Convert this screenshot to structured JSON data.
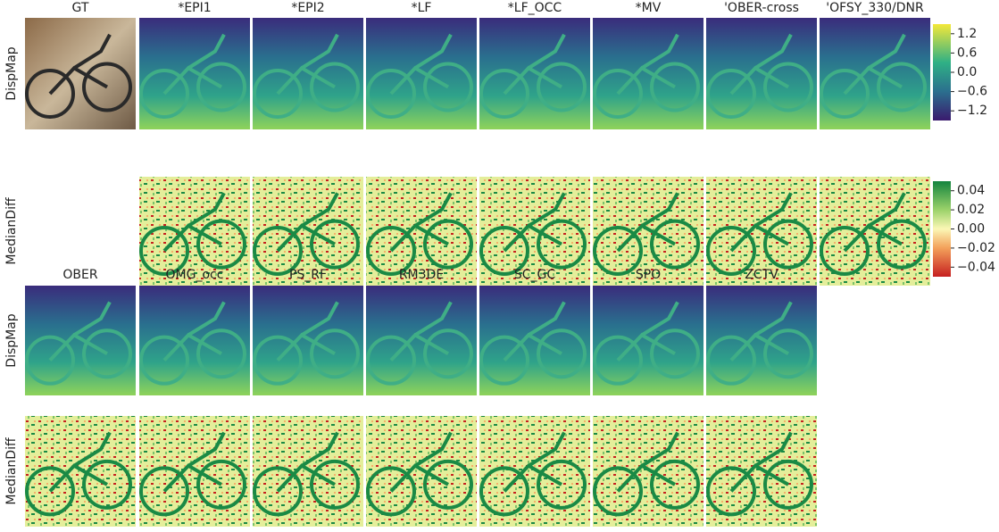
{
  "row_titles": [
    [
      "GT",
      "*EPI1",
      "*EPI2",
      "*LF",
      "*LF_OCC",
      "*MV",
      "'OBER-cross",
      "'OFSY_330/DNR"
    ],
    [
      "OBER",
      "OMG_occ",
      "PS_RF",
      "RM3DE",
      "SC_GC",
      "SPO",
      "ZCTV"
    ]
  ],
  "row_labels": [
    "DispMap",
    "MedianDiff",
    "DispMap",
    "MedianDiff"
  ],
  "colorbars": [
    {
      "ticks": [
        "1.2",
        "0.6",
        "0.0",
        "−0.6",
        "−1.2"
      ]
    },
    {
      "ticks": [
        "0.04",
        "0.02",
        "0.00",
        "−0.02",
        "−0.04"
      ]
    }
  ]
}
